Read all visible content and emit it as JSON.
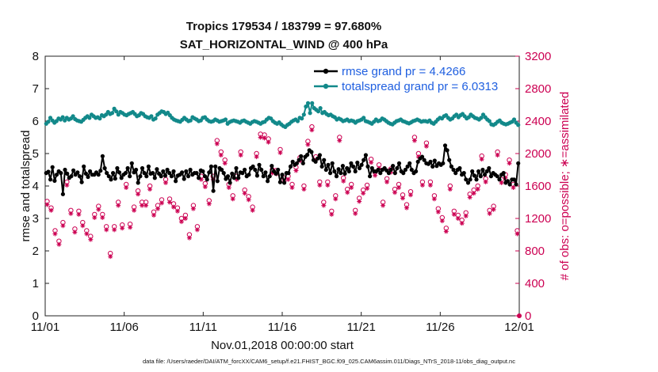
{
  "chart_data": {
    "type": "line",
    "title_line1": "Tropics 179534 / 183799 = 97.680%",
    "title_line2": "SAT_HORIZONTAL_WIND @ 400 hPa",
    "xlabel": "Nov.01,2018 00:00:00 start",
    "ylabel_left": "rmse and totalspread",
    "ylabel_right": "# of obs: o=possible; ∗=assimilated",
    "x_tick_labels": [
      "11/01",
      "11/06",
      "11/11",
      "11/16",
      "11/21",
      "11/26",
      "12/01"
    ],
    "x_range_days": [
      0,
      30
    ],
    "ylim_left": [
      0,
      8
    ],
    "yticks_left": [
      0,
      1,
      2,
      3,
      4,
      5,
      6,
      7,
      8
    ],
    "ylim_right": [
      0,
      3200
    ],
    "yticks_right": [
      0,
      400,
      800,
      1200,
      1600,
      2000,
      2400,
      2800,
      3200
    ],
    "legend": [
      "rmse grand pr = 4.4266",
      "totalspread grand pr = 6.0313"
    ],
    "footer": "data file: /Users/raeder/DAI/ATM_forcXX/CAM6_setup/f.e21.FHIST_BGC.f09_025.CAM6assim.011/Diags_NTrS_2018-11/obs_diag_output.nc",
    "colors": {
      "rmse": "#000000",
      "spread": "#12898a",
      "obs": "#cc0052",
      "legend_text": "#1f5fe0"
    },
    "series": [
      {
        "name": "rmse",
        "axis": "left",
        "values": [
          4.4,
          4.44,
          4.2,
          4.58,
          4.16,
          4.35,
          4.45,
          4.4,
          3.75,
          4.5,
          4.38,
          4.25,
          4.3,
          4.48,
          4.35,
          4.42,
          4.3,
          4.12,
          4.6,
          4.38,
          4.28,
          4.45,
          4.35,
          4.35,
          4.42,
          4.35,
          4.47,
          4.92,
          4.55,
          4.4,
          4.3,
          4.2,
          4.4,
          4.23,
          4.55,
          4.42,
          4.25,
          4.35,
          4.4,
          4.55,
          4.3,
          4.7,
          4.42,
          4.5,
          4.1,
          4.3,
          4.55,
          4.4,
          4.3,
          4.6,
          4.38,
          4.4,
          4.25,
          4.52,
          4.38,
          4.3,
          4.45,
          4.32,
          4.5,
          4.4,
          4.3,
          4.45,
          4.15,
          4.32,
          4.35,
          4.42,
          4.22,
          4.45,
          4.3,
          4.5,
          4.35,
          4.4,
          4.4,
          4.25,
          4.48,
          4.45,
          4.3,
          4.2,
          4.42,
          4.6,
          3.85,
          4.6,
          4.15,
          4.55,
          4.5,
          4.4,
          4.22,
          4.3,
          4.1,
          4.38,
          4.25,
          4.55,
          4.25,
          4.42,
          4.4,
          4.5,
          4.3,
          4.35,
          4.55,
          4.6,
          4.5,
          4.32,
          4.65,
          4.5,
          4.3,
          4.42,
          4.15,
          4.3,
          4.62,
          4.45,
          4.38,
          4.5,
          4.12,
          4.35,
          4.1,
          4.4,
          4.4,
          4.6,
          4.75,
          4.65,
          4.7,
          4.8,
          4.92,
          4.7,
          4.9,
          4.96,
          5.1,
          5.05,
          4.8,
          4.75,
          4.85,
          4.95,
          4.6,
          4.8,
          4.5,
          4.65,
          4.4,
          4.7,
          4.45,
          4.3,
          4.52,
          4.4,
          4.62,
          4.38,
          4.55,
          4.45,
          4.7,
          4.6,
          4.45,
          4.72,
          4.55,
          4.65,
          4.8,
          4.95,
          4.6,
          4.3,
          4.55,
          4.45,
          4.45,
          4.5,
          4.4,
          4.5,
          4.55,
          4.48,
          4.4,
          4.5,
          4.62,
          4.4,
          4.55,
          4.7,
          4.45,
          4.4,
          4.5,
          4.6,
          4.7,
          4.5,
          4.4,
          4.45,
          4.75,
          4.85,
          4.9,
          4.8,
          4.7,
          4.68,
          4.75,
          4.6,
          4.78,
          4.62,
          4.7,
          4.65,
          4.7,
          5.25,
          5.1,
          4.8,
          4.6,
          4.5,
          4.4,
          4.5,
          4.55,
          4.35,
          4.4,
          4.2,
          4.1,
          4.2,
          4.45,
          4.32,
          4.2,
          4.45,
          4.3,
          4.5,
          4.35,
          4.45,
          4.55,
          4.3,
          4.4,
          4.35,
          4.3,
          4.2,
          4.35,
          4.4,
          4.1,
          4.15,
          4.05,
          4.2,
          4.2,
          4.05,
          4.7
        ]
      },
      {
        "name": "totalspread",
        "axis": "left",
        "values": [
          5.92,
          5.98,
          6.1,
          6.02,
          5.95,
          6.0,
          6.08,
          6.05,
          6.12,
          6.02,
          6.1,
          6.05,
          6.08,
          6.15,
          6.06,
          6.02,
          6.0,
          5.98,
          6.04,
          6.1,
          6.15,
          6.1,
          6.2,
          6.15,
          6.1,
          6.12,
          6.08,
          6.18,
          6.15,
          6.2,
          6.28,
          6.22,
          6.25,
          6.38,
          6.3,
          6.2,
          6.28,
          6.25,
          6.2,
          6.18,
          6.22,
          6.25,
          6.28,
          6.22,
          6.15,
          6.18,
          6.25,
          6.22,
          6.15,
          6.12,
          6.1,
          6.15,
          6.05,
          6.08,
          6.2,
          6.25,
          6.3,
          6.28,
          6.22,
          6.26,
          6.18,
          6.1,
          6.05,
          6.02,
          6.0,
          5.98,
          6.04,
          6.1,
          6.05,
          6.0,
          6.02,
          6.12,
          6.08,
          6.05,
          6.0,
          6.02,
          6.1,
          6.12,
          6.05,
          6.0,
          5.98,
          6.0,
          6.05,
          6.02,
          5.98,
          6.0,
          6.02,
          6.05,
          5.92,
          5.97,
          6.0,
          6.02,
          6.0,
          5.98,
          5.95,
          6.0,
          6.02,
          5.98,
          5.95,
          5.92,
          5.97,
          6.0,
          5.98,
          5.95,
          5.92,
          5.96,
          5.98,
          6.05,
          6.1,
          6.08,
          6.0,
          5.95,
          5.92,
          5.96,
          5.9,
          5.85,
          5.82,
          5.88,
          5.92,
          5.98,
          6.02,
          6.05,
          6.0,
          6.1,
          6.08,
          6.2,
          6.45,
          6.55,
          6.25,
          6.55,
          6.4,
          6.35,
          6.3,
          6.4,
          6.25,
          6.28,
          6.22,
          6.18,
          6.2,
          6.15,
          6.12,
          6.05,
          6.08,
          6.05,
          6.0,
          6.02,
          6.05,
          6.0,
          6.02,
          6.0,
          5.95,
          6.0,
          6.02,
          6.05,
          6.1,
          6.0,
          5.98,
          5.95,
          5.92,
          5.98,
          6.05,
          6.0,
          6.02,
          6.08,
          6.05,
          6.0,
          5.95,
          5.92,
          5.9,
          5.95,
          6.0,
          6.02,
          6.05,
          6.0,
          5.98,
          5.95,
          5.93,
          5.96,
          6.0,
          6.02,
          6.05,
          6.02,
          5.98,
          6.0,
          6.0,
          5.98,
          6.02,
          5.95,
          5.92,
          5.98,
          6.05,
          6.1,
          6.08,
          6.15,
          6.18,
          6.1,
          6.05,
          6.08,
          6.15,
          6.2,
          6.12,
          6.18,
          6.22,
          6.15,
          6.08,
          6.12,
          6.2,
          6.15,
          6.1,
          6.08,
          6.05,
          6.1,
          6.2,
          6.12,
          6.05,
          6.0,
          5.9,
          5.88,
          5.92,
          5.98,
          6.02,
          5.95,
          5.92,
          5.9,
          5.92,
          5.95,
          5.98,
          6.05,
          5.95,
          5.88
        ]
      },
      {
        "name": "obs_possible",
        "axis": "right",
        "type": "scatter",
        "values": [
          1410,
          1330,
          1050,
          920,
          1150,
          1650,
          1300,
          1070,
          1290,
          1150,
          1050,
          980,
          1250,
          1350,
          1250,
          1100,
          770,
          1100,
          1400,
          1120,
          1620,
          1130,
          1340,
          1540,
          1400,
          1400,
          1600,
          1280,
          1360,
          1430,
          1680,
          1440,
          1380,
          1330,
          1200,
          1240,
          1000,
          1360,
          1100,
          1720,
          1630,
          1420,
          1720,
          2160,
          2020,
          1920,
          1620,
          1480,
          1720,
          2020,
          1550,
          1470,
          1340,
          2000,
          2240,
          2230,
          2180,
          1800,
          1790,
          2050,
          1700,
          1720,
          1620,
          1830,
          1950,
          1600,
          2150,
          2330,
          1960,
          1650,
          1400,
          1650,
          1290,
          1480,
          2200,
          1700,
          1560,
          1620,
          1300,
          1450,
          1550,
          1610,
          1930,
          1770,
          1860,
          1400,
          1690,
          1810,
          1560,
          1620,
          1490,
          1370,
          1530,
          2200,
          2000,
          1650,
          2130,
          1650,
          1480,
          1320,
          1210,
          1080,
          1600,
          1290,
          1240,
          1180,
          1270,
          1500,
          1550,
          1600,
          1970,
          1690,
          1300,
          1350,
          2020,
          1680,
          1740,
          1920,
          1620,
          1050
        ]
      },
      {
        "name": "obs_assimilated",
        "axis": "right",
        "type": "scatter",
        "values": [
          1370,
          1300,
          1010,
          880,
          1110,
          1610,
          1260,
          1030,
          1250,
          1110,
          1010,
          940,
          1210,
          1310,
          1210,
          1060,
          730,
          1060,
          1360,
          1080,
          1580,
          1090,
          1300,
          1500,
          1360,
          1360,
          1560,
          1240,
          1320,
          1390,
          1640,
          1400,
          1340,
          1290,
          1160,
          1200,
          960,
          1320,
          1060,
          1680,
          1590,
          1380,
          1680,
          2120,
          1980,
          1880,
          1580,
          1440,
          1680,
          1980,
          1510,
          1430,
          1300,
          1960,
          2200,
          2190,
          2140,
          1760,
          1750,
          2010,
          1660,
          1680,
          1580,
          1790,
          1910,
          1560,
          2110,
          2290,
          1920,
          1610,
          1360,
          1610,
          1250,
          1440,
          2160,
          1660,
          1520,
          1580,
          1260,
          1410,
          1510,
          1570,
          1890,
          1730,
          1820,
          1360,
          1650,
          1770,
          1520,
          1580,
          1450,
          1330,
          1490,
          2160,
          1960,
          1610,
          2090,
          1610,
          1440,
          1280,
          1170,
          1040,
          1560,
          1250,
          1200,
          1140,
          1230,
          1460,
          1510,
          1560,
          1930,
          1650,
          1260,
          1310,
          1980,
          1640,
          1700,
          1880,
          1580,
          1010
        ]
      }
    ]
  }
}
